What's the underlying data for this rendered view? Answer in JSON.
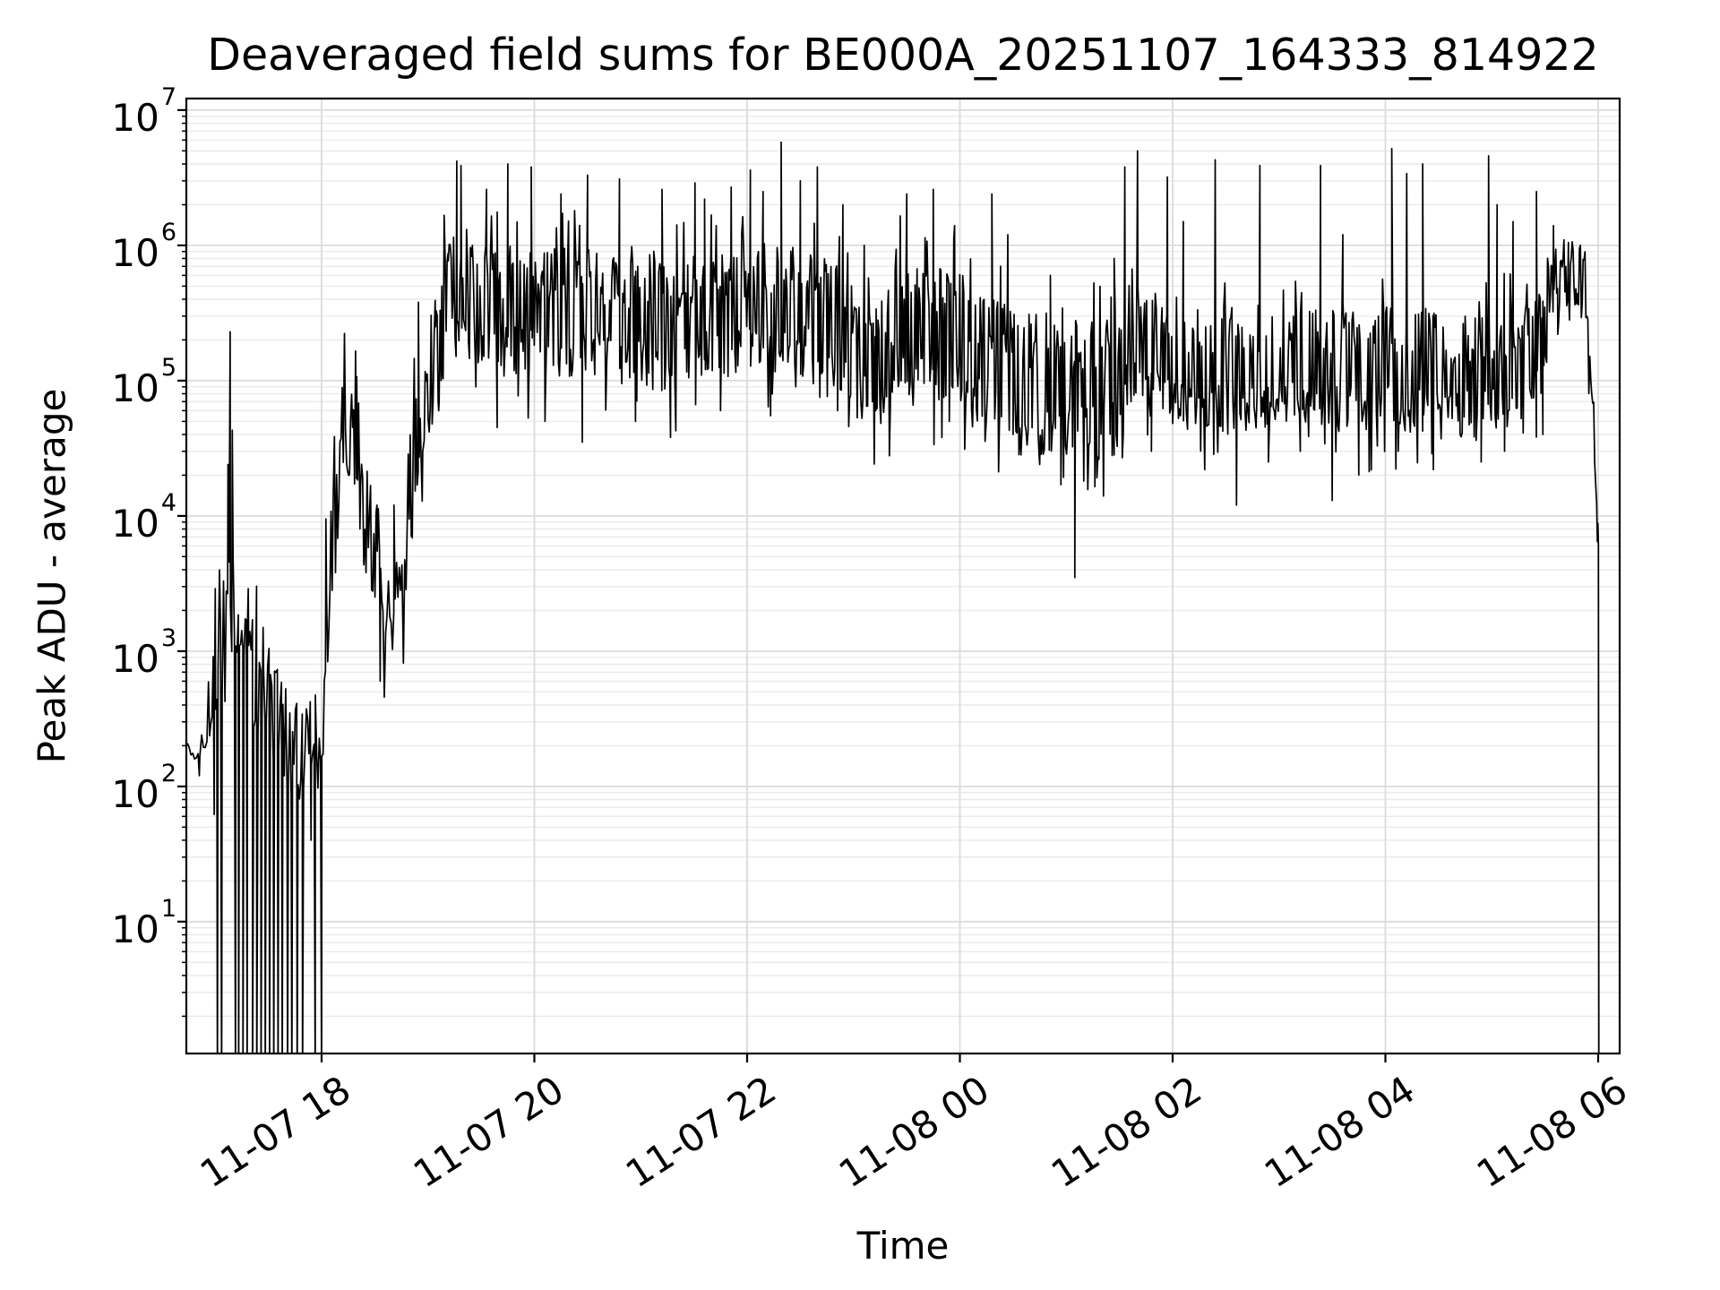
{
  "chart_data": {
    "type": "line",
    "title": "Deaveraged field sums for BE000A_20251107_164333_814922",
    "xlabel": "Time",
    "ylabel": "Peak ADU - average",
    "yscale": "log",
    "grid": true,
    "legend": "none",
    "background_color": "#ffffff",
    "line_color": "#000000",
    "spine_color": "#000000",
    "grid_major_color": "#dbdbdb",
    "grid_minor_color": "#eaeaea",
    "x_unit": "decimal hours since 2025-11-07 00:00",
    "xlim": [
      16.728,
      30.202
    ],
    "ylim": [
      1.06,
      12180000
    ],
    "x_ticks": [
      {
        "t": 18,
        "label": "11-07 18"
      },
      {
        "t": 20,
        "label": "11-07 20"
      },
      {
        "t": 22,
        "label": "11-07 22"
      },
      {
        "t": 24,
        "label": "11-08 00"
      },
      {
        "t": 26,
        "label": "11-08 02"
      },
      {
        "t": 28,
        "label": "11-08 04"
      },
      {
        "t": 30,
        "label": "11-08 06"
      }
    ],
    "y_ticks": [
      {
        "base": "10",
        "exp": "7"
      },
      {
        "base": "10",
        "exp": "6"
      },
      {
        "base": "10",
        "exp": "5"
      },
      {
        "base": "10",
        "exp": "4"
      },
      {
        "base": "10",
        "exp": "3"
      },
      {
        "base": "10",
        "exp": "2"
      },
      {
        "base": "10",
        "exp": "1"
      }
    ],
    "series": [
      {
        "name": "deaveraged_field_sum",
        "color": "#000000",
        "note": "dense noisy log-scale trace; reconstructed as envelope segments [t_start,t_end,n_points,log10_start,log10_end,log10_noise_amp] plus exact feature events [t, value_ADU]; values below ylim are clipped at the bottom spine (dropouts)",
        "noise_seed": 20251107,
        "segments": [
          [
            16.73,
            16.93,
            12,
            2.27,
            2.27,
            0.06
          ],
          [
            16.93,
            17.02,
            8,
            2.45,
            2.85,
            0.25
          ],
          [
            17.02,
            17.2,
            14,
            3.1,
            3.2,
            0.45
          ],
          [
            17.2,
            17.33,
            12,
            3.1,
            3.1,
            0.15
          ],
          [
            17.33,
            17.85,
            40,
            2.9,
            2.1,
            0.35
          ],
          [
            17.85,
            18.02,
            14,
            2.3,
            2.5,
            0.3
          ],
          [
            18.02,
            18.23,
            20,
            3.0,
            4.9,
            0.35
          ],
          [
            18.23,
            18.38,
            16,
            4.6,
            4.5,
            0.35
          ],
          [
            18.38,
            18.57,
            18,
            4.2,
            3.2,
            0.4
          ],
          [
            18.57,
            18.8,
            18,
            3.0,
            3.3,
            0.35
          ],
          [
            18.8,
            19.25,
            48,
            4.1,
            5.9,
            0.4
          ],
          [
            19.25,
            19.7,
            50,
            5.62,
            5.55,
            0.38
          ],
          [
            19.7,
            20.6,
            95,
            5.5,
            5.5,
            0.4
          ],
          [
            20.6,
            21.4,
            85,
            5.45,
            5.38,
            0.4
          ],
          [
            21.4,
            22.0,
            65,
            5.45,
            5.5,
            0.38
          ],
          [
            22.0,
            22.6,
            65,
            5.55,
            5.5,
            0.4
          ],
          [
            22.6,
            22.95,
            40,
            5.5,
            5.35,
            0.38
          ],
          [
            22.95,
            23.35,
            45,
            5.25,
            5.1,
            0.42
          ],
          [
            23.35,
            24.05,
            75,
            5.42,
            5.3,
            0.42
          ],
          [
            24.05,
            24.55,
            55,
            5.2,
            5.05,
            0.4
          ],
          [
            24.55,
            25.55,
            105,
            4.97,
            4.95,
            0.45
          ],
          [
            25.55,
            26.05,
            55,
            5.25,
            5.15,
            0.4
          ],
          [
            26.05,
            26.95,
            95,
            5.1,
            5.05,
            0.4
          ],
          [
            26.95,
            27.9,
            100,
            5.1,
            5.08,
            0.38
          ],
          [
            27.9,
            28.5,
            62,
            5.1,
            5.05,
            0.4
          ],
          [
            28.5,
            29.3,
            85,
            5.02,
            5.05,
            0.38
          ],
          [
            29.3,
            29.52,
            25,
            5.15,
            5.3,
            0.33
          ],
          [
            29.52,
            29.88,
            42,
            5.75,
            5.82,
            0.22
          ],
          [
            29.88,
            29.99,
            12,
            5.6,
            4.2,
            0.15
          ],
          [
            29.99,
            30.005,
            3,
            3.9,
            3.8,
            0.08
          ],
          [
            30.005,
            30.01,
            2,
            -0.3,
            -0.3,
            0
          ]
        ],
        "events": [
          [
            16.85,
            120
          ],
          [
            16.99,
            62
          ],
          [
            17.0,
            2900
          ],
          [
            17.02,
            0.5
          ],
          [
            17.05,
            1500
          ],
          [
            17.06,
            0.5
          ],
          [
            17.12,
            24000
          ],
          [
            17.14,
            230000
          ],
          [
            17.16,
            43000
          ],
          [
            17.18,
            1300
          ],
          [
            17.19,
            0.5
          ],
          [
            17.22,
            0.5
          ],
          [
            17.26,
            0.5
          ],
          [
            17.3,
            0.5
          ],
          [
            17.31,
            2900
          ],
          [
            17.35,
            0.5
          ],
          [
            17.39,
            0.5
          ],
          [
            17.43,
            0.5
          ],
          [
            17.45,
            1500
          ],
          [
            17.47,
            0.5
          ],
          [
            17.51,
            0.5
          ],
          [
            17.55,
            0.5
          ],
          [
            17.59,
            0.5
          ],
          [
            17.63,
            0.5
          ],
          [
            17.68,
            0.5
          ],
          [
            17.72,
            0.5
          ],
          [
            17.77,
            0.5
          ],
          [
            17.82,
            0.5
          ],
          [
            17.9,
            40
          ],
          [
            17.94,
            0.5
          ],
          [
            18.0,
            0.5
          ],
          [
            18.04,
            9500
          ],
          [
            18.26,
            20000
          ],
          [
            18.3,
            45000
          ],
          [
            18.33,
            107000
          ],
          [
            18.36,
            8000
          ],
          [
            18.52,
            12000
          ],
          [
            18.55,
            600
          ],
          [
            18.68,
            12000
          ],
          [
            18.85,
            10000
          ],
          [
            18.91,
            380000
          ],
          [
            18.95,
            30000
          ],
          [
            19.07,
            250000
          ],
          [
            19.1,
            60000
          ],
          [
            19.13,
            500000
          ],
          [
            19.19,
            770000
          ],
          [
            19.24,
            1150000
          ],
          [
            19.27,
            4200000
          ],
          [
            19.31,
            3900000
          ],
          [
            19.45,
            90000
          ],
          [
            19.55,
            2600000
          ],
          [
            19.65,
            45000
          ],
          [
            19.75,
            4000000
          ],
          [
            19.97,
            3800000
          ],
          [
            20.1,
            50000
          ],
          [
            20.25,
            2400000
          ],
          [
            20.45,
            35000
          ],
          [
            20.5,
            3300000
          ],
          [
            20.8,
            3100000
          ],
          [
            20.95,
            50000
          ],
          [
            21.2,
            2600000
          ],
          [
            21.28,
            38000
          ],
          [
            21.51,
            2900000
          ],
          [
            21.6,
            2200000
          ],
          [
            21.75,
            60000
          ],
          [
            21.85,
            2700000
          ],
          [
            22.03,
            3600000
          ],
          [
            22.15,
            2500000
          ],
          [
            22.22,
            55000
          ],
          [
            22.32,
            5800000
          ],
          [
            22.5,
            3000000
          ],
          [
            22.66,
            3800000
          ],
          [
            22.85,
            60000
          ],
          [
            22.9,
            2000000
          ],
          [
            23.1,
            1000000
          ],
          [
            23.21,
            60000
          ],
          [
            23.5,
            2400000
          ],
          [
            23.75,
            2600000
          ],
          [
            23.9,
            50000
          ],
          [
            23.95,
            1400000
          ],
          [
            24.3,
            2400000
          ],
          [
            24.45,
            1200000
          ],
          [
            24.5,
            40000
          ],
          [
            24.75,
            24000
          ],
          [
            24.85,
            600000
          ],
          [
            24.95,
            17000
          ],
          [
            25.08,
            3500
          ],
          [
            25.35,
            14000
          ],
          [
            25.45,
            800000
          ],
          [
            25.55,
            3800000
          ],
          [
            25.67,
            5000000
          ],
          [
            25.8,
            30000
          ],
          [
            25.95,
            3200000
          ],
          [
            26.1,
            1500000
          ],
          [
            26.4,
            4300000
          ],
          [
            26.6,
            12000
          ],
          [
            26.82,
            3900000
          ],
          [
            26.9,
            25000
          ],
          [
            27.2,
            30000
          ],
          [
            27.39,
            3900000
          ],
          [
            27.5,
            13000
          ],
          [
            27.6,
            1200000
          ],
          [
            27.75,
            20000
          ],
          [
            28.06,
            5200000
          ],
          [
            28.12,
            30000
          ],
          [
            28.2,
            3400000
          ],
          [
            28.35,
            4000000
          ],
          [
            28.45,
            22000
          ],
          [
            28.9,
            25000
          ],
          [
            28.97,
            4600000
          ],
          [
            29.05,
            2000000
          ],
          [
            29.12,
            30000
          ],
          [
            29.2,
            1500000
          ],
          [
            29.42,
            2500000
          ],
          [
            29.48,
            40000
          ],
          [
            29.58,
            1400000
          ],
          [
            29.62,
            220000
          ],
          [
            29.72,
            1050000
          ],
          [
            30.01,
            0.4
          ]
        ]
      }
    ]
  }
}
